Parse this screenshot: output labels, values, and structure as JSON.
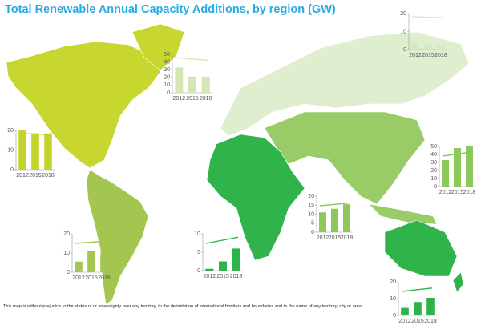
{
  "title": "Total Renewable Annual Capacity Additions, by region (GW)",
  "note": "This map is without prejudice to the status of or sovereignty over any territory, to the delimitation of international frontiers and boundaries and to the name of any territory, city or area.",
  "chart_data": [
    {
      "type": "bar",
      "categories": [
        "2012",
        "2015",
        "2018"
      ],
      "values": [
        20,
        18.5,
        18.5
      ],
      "color": "#c5d42b",
      "ylim": [
        0,
        20
      ],
      "yticks": [
        0,
        10,
        20
      ]
    },
    {
      "type": "bar",
      "categories": [
        "2012",
        "2015",
        "2018"
      ],
      "values": [
        33,
        21,
        21
      ],
      "color": "#d3e6b4",
      "ylim": [
        0,
        50
      ],
      "yticks": [
        0,
        10,
        20,
        30,
        40,
        50
      ]
    },
    {
      "type": "bar",
      "categories": [
        "2012",
        "2015",
        "2018"
      ],
      "values": [
        4,
        3,
        2.5
      ],
      "color": "#d6eac2",
      "ylim": [
        0,
        20
      ],
      "yticks": [
        0,
        10,
        20
      ]
    },
    {
      "type": "bar",
      "categories": [
        "2012",
        "2015",
        "2018"
      ],
      "values": [
        33,
        48,
        50
      ],
      "color": "#8cc85a",
      "ylim": [
        0,
        50
      ],
      "yticks": [
        0,
        10,
        20,
        30,
        40,
        50
      ]
    },
    {
      "type": "bar",
      "categories": [
        "2012",
        "2015",
        "2018"
      ],
      "values": [
        11,
        13,
        15.5
      ],
      "color": "#8cc85a",
      "ylim": [
        0,
        20
      ],
      "yticks": [
        0,
        5,
        10,
        15,
        20
      ]
    },
    {
      "type": "bar",
      "categories": [
        "2012",
        "2015",
        "2018"
      ],
      "values": [
        5.5,
        11,
        9.5
      ],
      "color": "#a3c650",
      "ylim": [
        0,
        20
      ],
      "yticks": [
        0,
        10,
        20
      ]
    },
    {
      "type": "bar",
      "categories": [
        "2012",
        "2015",
        "2018"
      ],
      "values": [
        0.5,
        2.5,
        6
      ],
      "color": "#2db34a",
      "ylim": [
        0,
        10
      ],
      "yticks": [
        0,
        5,
        10
      ]
    },
    {
      "type": "bar",
      "categories": [
        "2012",
        "2015",
        "2018"
      ],
      "values": [
        4.5,
        8,
        10.5
      ],
      "color": "#2db34a",
      "ylim": [
        0,
        20
      ],
      "yticks": [
        0,
        10,
        20
      ]
    }
  ]
}
